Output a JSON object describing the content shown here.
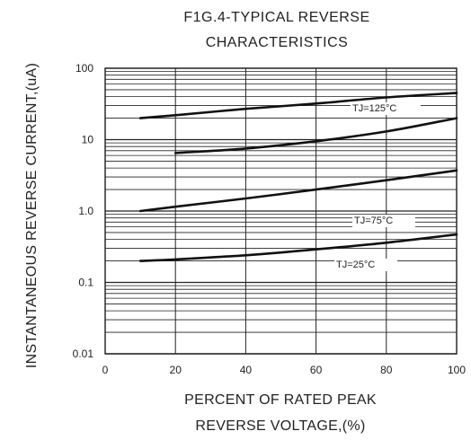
{
  "chart_data": {
    "type": "line",
    "title_lines": [
      "F1G.4-TYPICAL REVERSE",
      "CHARACTERISTICS"
    ],
    "xlabel_lines": [
      "PERCENT OF RATED PEAK",
      "REVERSE VOLTAGE,(%)"
    ],
    "ylabel": "INSTANTANEOUS REVERSE CURRENT,(uA)",
    "x_scale": "linear",
    "y_scale": "log",
    "xlim": [
      0,
      100
    ],
    "ylim": [
      0.01,
      100
    ],
    "x_ticks": [
      "0",
      "20",
      "40",
      "60",
      "80",
      "100"
    ],
    "y_ticks": [
      "0.01",
      "0.1",
      "1.0",
      "10",
      "100"
    ],
    "grid": true,
    "colors": {
      "line": "#111111",
      "grid": "#222222"
    },
    "series": [
      {
        "label": "TJ=125°C",
        "x": [
          10,
          20,
          40,
          60,
          80,
          100
        ],
        "y": [
          20,
          22,
          27,
          32,
          39,
          45
        ]
      },
      {
        "x": [
          20,
          40,
          60,
          80,
          100
        ],
        "y": [
          6.5,
          7.5,
          9.5,
          13,
          20
        ]
      },
      {
        "label": "TJ=75°C",
        "x": [
          10,
          20,
          40,
          60,
          80,
          100
        ],
        "y": [
          1.0,
          1.15,
          1.5,
          2.0,
          2.7,
          3.7
        ]
      },
      {
        "label": "TJ=25°C",
        "x": [
          10,
          20,
          40,
          60,
          80,
          100
        ],
        "y": [
          0.2,
          0.21,
          0.24,
          0.29,
          0.36,
          0.47
        ]
      }
    ]
  }
}
